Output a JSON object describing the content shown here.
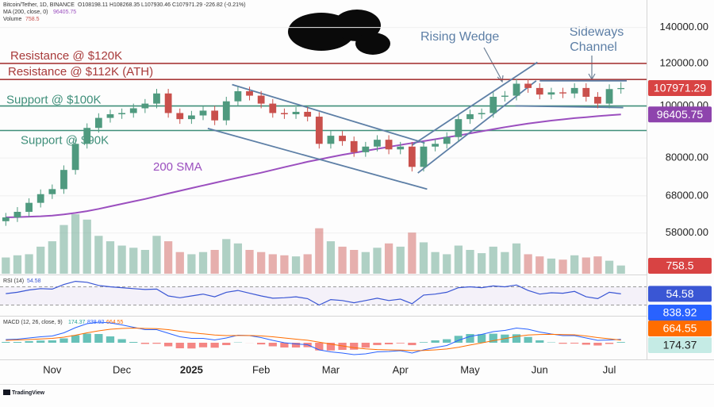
{
  "header": {
    "symbol": "Bitcoin/Tether, 1D, BINANCE",
    "ohlc": "O108198.11 H108268.35 L107930.46 C107971.29 -226.82 (-0.21%)",
    "ma": "MA (200, close, 0)",
    "volume": "Volume"
  },
  "chart_data": [
    {
      "type": "candlestick",
      "categories": [
        null,
        null,
        null,
        null,
        "Nov",
        null,
        null,
        null,
        null,
        null,
        "Dec",
        null,
        null,
        null,
        null,
        null,
        "2025",
        null,
        null,
        null,
        null,
        null,
        "Feb",
        null,
        null,
        null,
        null,
        null,
        "Mar",
        null,
        null,
        null,
        null,
        null,
        "Apr",
        null,
        null,
        null,
        null,
        null,
        "May",
        null,
        null,
        null,
        null,
        null,
        "Jun",
        null,
        null,
        null,
        null,
        null,
        "Jul",
        null
      ],
      "open": [
        61000,
        62000,
        63500,
        66000,
        68500,
        70000,
        76000,
        85000,
        91000,
        95000,
        96500,
        97000,
        99000,
        101000,
        105500,
        97000,
        94500,
        96000,
        98000,
        94000,
        102000,
        106500,
        104500,
        101000,
        97000,
        96500,
        97500,
        95500,
        85000,
        88000,
        86000,
        82000,
        84000,
        86500,
        83000,
        84000,
        77000,
        84000,
        85000,
        87500,
        94500,
        96500,
        97000,
        104000,
        104500,
        110000,
        108000,
        105000,
        106000,
        105500,
        108000,
        104000,
        101000,
        107500
      ],
      "high": [
        63200,
        64800,
        67300,
        69900,
        71400,
        77500,
        86700,
        92800,
        96900,
        98400,
        98900,
        101000,
        103000,
        107600,
        107600,
        98900,
        97900,
        100000,
        100000,
        104000,
        108600,
        108600,
        106600,
        103000,
        98900,
        99500,
        99500,
        97400,
        89800,
        89800,
        87700,
        85700,
        88200,
        88200,
        85700,
        85700,
        85700,
        86700,
        89300,
        96400,
        98400,
        98900,
        106100,
        106600,
        112200,
        112200,
        110200,
        108100,
        108100,
        110200,
        110200,
        106100,
        109700,
        110700
      ],
      "low": [
        59800,
        60800,
        62200,
        64700,
        67100,
        68600,
        74500,
        83300,
        89200,
        93100,
        94600,
        95100,
        97000,
        99000,
        95100,
        92600,
        92600,
        94100,
        92100,
        92100,
        100000,
        102400,
        99000,
        95100,
        94600,
        94600,
        93600,
        83300,
        83300,
        84300,
        80400,
        80400,
        82300,
        81300,
        81300,
        75500,
        75500,
        82300,
        83300,
        85800,
        92600,
        94600,
        95100,
        101900,
        102400,
        105800,
        102900,
        102900,
        103400,
        103400,
        101900,
        99000,
        99000,
        105400
      ],
      "close": [
        62000,
        63500,
        66000,
        68500,
        70000,
        76000,
        85000,
        91000,
        95000,
        96500,
        97000,
        99000,
        101000,
        105500,
        97000,
        94500,
        96000,
        98000,
        94000,
        102000,
        106500,
        104500,
        101000,
        97000,
        96500,
        97500,
        95500,
        85000,
        88000,
        86000,
        82000,
        84000,
        86500,
        83000,
        84000,
        77000,
        84000,
        85000,
        87500,
        94500,
        96500,
        97000,
        104000,
        104500,
        110000,
        108000,
        105000,
        106000,
        105500,
        108000,
        104000,
        101000,
        107500,
        107971.29
      ],
      "up_color": "#4f9a7f",
      "down_color": "#c9504c",
      "volume": {
        "values": [
          1500,
          1700,
          1800,
          2500,
          3000,
          4500,
          5500,
          5000,
          3500,
          3000,
          2600,
          2400,
          2200,
          3500,
          3000,
          2000,
          1800,
          2000,
          2200,
          3200,
          2800,
          2200,
          2000,
          1800,
          1700,
          1600,
          1800,
          4200,
          3000,
          2500,
          2200,
          2000,
          2400,
          2800,
          2500,
          3800,
          2900,
          2000,
          1800,
          2600,
          2200,
          1900,
          2500,
          2000,
          2800,
          1800,
          1600,
          1400,
          1300,
          1700,
          1500,
          1600,
          1200,
          758.5
        ]
      },
      "moving_average": {
        "color": "#9b4fbf",
        "values": [
          62000,
          62100,
          62200,
          62300,
          62500,
          62800,
          63200,
          63700,
          64300,
          65000,
          65700,
          66400,
          67100,
          67900,
          68700,
          69500,
          70300,
          71100,
          71900,
          72700,
          73500,
          74300,
          75100,
          76000,
          76900,
          77800,
          78700,
          79500,
          80300,
          81100,
          81800,
          82500,
          83200,
          83900,
          84600,
          85300,
          86000,
          86700,
          87400,
          88100,
          88900,
          89700,
          90500,
          91300,
          92000,
          92700,
          93300,
          93900,
          94400,
          94900,
          95300,
          95700,
          96100,
          96405.75
        ]
      },
      "ylim": [
        48700,
        157500
      ],
      "log_scale": true,
      "yticks": [
        {
          "value": 140000,
          "label": "140000.00"
        },
        {
          "value": 120000,
          "label": "120000.00"
        },
        {
          "value": 100000,
          "label": "100000.00"
        },
        {
          "value": 80000,
          "label": "80000.00"
        },
        {
          "value": 68000,
          "label": "68000.00"
        },
        {
          "value": 58000,
          "label": "58000.00"
        }
      ],
      "levels": [
        {
          "value": 120000,
          "label": "Resistance @ $120K",
          "color": "#a83a3a"
        },
        {
          "value": 112000,
          "label": "Resistance @ $112K (ATH)",
          "color": "#a83a3a"
        },
        {
          "value": 100000,
          "label": "Support @ $100K",
          "color": "#3f8f7a"
        },
        {
          "value": 90000,
          "label": "Support @ $90K",
          "color": "#3f8f7a"
        }
      ],
      "trendline_color": "#5d7fa6",
      "trendlines": [
        {
          "points": [
            [
              19.5,
              109600
            ],
            [
              36.1,
              85300
            ]
          ]
        },
        {
          "points": [
            [
              17.4,
              90800
            ],
            [
              36.3,
              70000
            ]
          ]
        },
        {
          "points": [
            [
              35.5,
              75000
            ],
            [
              45.7,
              111400
            ]
          ]
        },
        {
          "points": [
            [
              35,
              84500
            ],
            [
              45.8,
              120600
            ]
          ]
        },
        {
          "points": [
            [
              46,
              111400
            ],
            [
              53.5,
              111400
            ]
          ]
        },
        {
          "points": [
            [
              43.9,
              100000
            ],
            [
              53.2,
              99300
            ]
          ]
        }
      ],
      "annotations": {
        "rising_wedge": "Rising Wedge",
        "sideways": "Sideways",
        "channel": "Channel",
        "sma": "200 SMA"
      }
    },
    {
      "type": "line",
      "title": "RSI (14)",
      "color": "#3a56d4",
      "band": [
        30,
        70
      ],
      "ylim": [
        10,
        90
      ],
      "values": [
        55,
        58,
        63,
        66,
        65,
        75,
        82,
        80,
        73,
        70,
        68,
        66,
        64,
        65,
        50,
        46,
        50,
        54,
        48,
        58,
        62,
        56,
        50,
        45,
        46,
        48,
        44,
        30,
        42,
        40,
        35,
        40,
        45,
        40,
        43,
        33,
        52,
        54,
        58,
        68,
        70,
        68,
        72,
        70,
        74,
        62,
        54,
        57,
        56,
        60,
        48,
        44,
        58,
        54.58
      ]
    },
    {
      "type": "macd",
      "title": "MACD (12, 26, close, 9)",
      "ylim": [
        -4000,
        6000
      ],
      "macd": {
        "color": "#2962ff",
        "values": [
          800,
          900,
          1200,
          1500,
          1700,
          2500,
          3800,
          4800,
          5200,
          5000,
          4500,
          3900,
          3300,
          3300,
          2400,
          1500,
          1100,
          1100,
          700,
          1200,
          1900,
          1800,
          1300,
          600,
          0,
          -300,
          -500,
          -1800,
          -2300,
          -2600,
          -3000,
          -2800,
          -2300,
          -2200,
          -2000,
          -2600,
          -1800,
          -1200,
          -700,
          600,
          1600,
          2100,
          2800,
          3100,
          3700,
          3400,
          2700,
          2200,
          1800,
          1800,
          1200,
          600,
          700,
          838.92
        ]
      },
      "signal": {
        "color": "#ff6d00",
        "values": [
          600,
          700,
          800,
          950,
          1100,
          1400,
          1900,
          2500,
          3000,
          3400,
          3600,
          3700,
          3600,
          3550,
          3300,
          2900,
          2550,
          2250,
          1950,
          1800,
          1820,
          1820,
          1720,
          1500,
          1200,
          900,
          620,
          140,
          -350,
          -800,
          -1250,
          -1560,
          -1710,
          -1800,
          -1840,
          -1990,
          -1950,
          -1800,
          -1580,
          -1140,
          -590,
          -50,
          520,
          1040,
          1570,
          1940,
          2090,
          2110,
          2050,
          2000,
          1700,
          1300,
          1000,
          664.55
        ]
      },
      "histogram": {
        "up_color": "#26a69a",
        "down_color": "#ef5350",
        "values": [
          200,
          200,
          400,
          550,
          600,
          1100,
          1900,
          2300,
          2200,
          1600,
          900,
          200,
          -300,
          -250,
          -900,
          -1400,
          -1450,
          -1150,
          -1250,
          -600,
          80,
          -20,
          -420,
          -900,
          -1200,
          -1200,
          -1120,
          -1940,
          -1950,
          -1800,
          -1750,
          -1240,
          -590,
          -400,
          -160,
          -610,
          150,
          600,
          880,
          1740,
          2190,
          2150,
          2280,
          2060,
          2130,
          1460,
          610,
          90,
          -250,
          -200,
          -500,
          -700,
          -300,
          174.37
        ]
      }
    }
  ],
  "footer": {
    "brand": "TradingView"
  }
}
